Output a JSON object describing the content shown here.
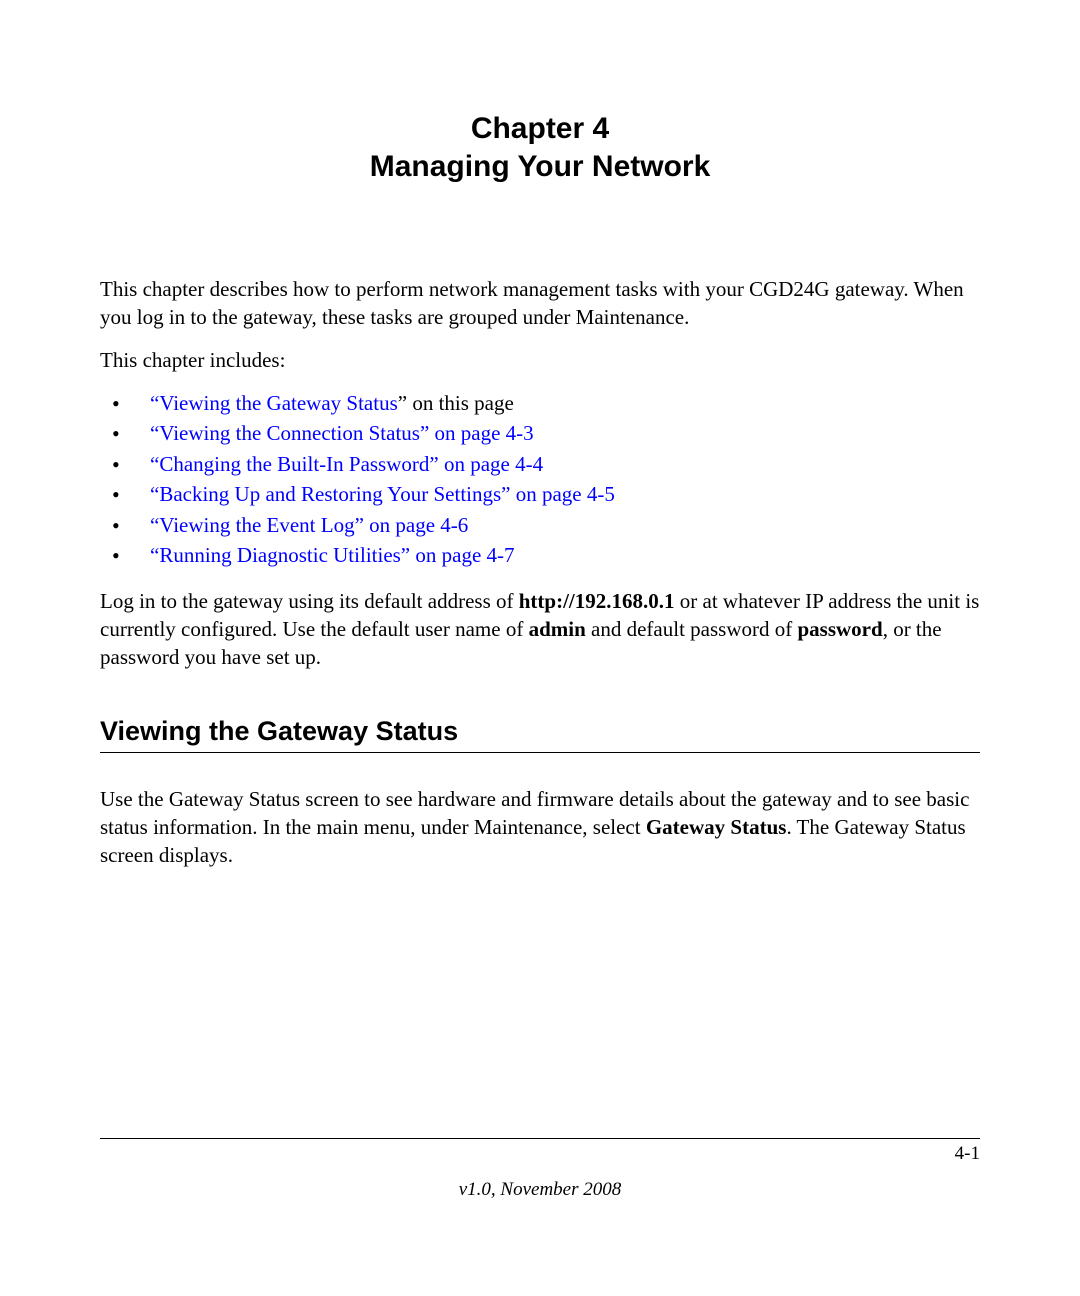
{
  "chapter": {
    "line1": "Chapter 4",
    "line2": "Managing Your Network"
  },
  "intro_p1": "This chapter describes how to perform network management tasks with your CGD24G gateway. When you log in to the gateway, these tasks are grouped under Maintenance.",
  "intro_p2": "This chapter includes:",
  "toc": [
    {
      "link": "“Viewing the Gateway Status",
      "suffix": "” on this page"
    },
    {
      "link": "“Viewing the Connection Status” on page 4-3",
      "suffix": ""
    },
    {
      "link": "“Changing the Built-In Password” on page 4-4",
      "suffix": ""
    },
    {
      "link": "“Backing Up and Restoring Your Settings” on page 4-5",
      "suffix": ""
    },
    {
      "link": "“Viewing the Event Log” on page 4-6",
      "suffix": ""
    },
    {
      "link": "“Running Diagnostic Utilities” on page 4-7",
      "suffix": ""
    }
  ],
  "login_para": {
    "pre": "Log in to the gateway using its default address of ",
    "url": "http://192.168.0.1",
    "mid1": " or at whatever IP address the unit is currently configured. Use the default user name of ",
    "user": "admin",
    "mid2": " and default password of ",
    "pass": "password",
    "post": ", or the password you have set up."
  },
  "section_heading": "Viewing the Gateway Status",
  "section_para": {
    "pre": "Use the Gateway Status screen to see hardware and firmware details about the gateway and to see basic status information. In the main menu, under Maintenance, select ",
    "bold": "Gateway Status",
    "post": ". The Gateway Status screen displays."
  },
  "footer": {
    "page": "4-1",
    "version": "v1.0, November 2008"
  },
  "colors": {
    "link": "#0000ff",
    "text": "#000000",
    "background": "#ffffff"
  }
}
